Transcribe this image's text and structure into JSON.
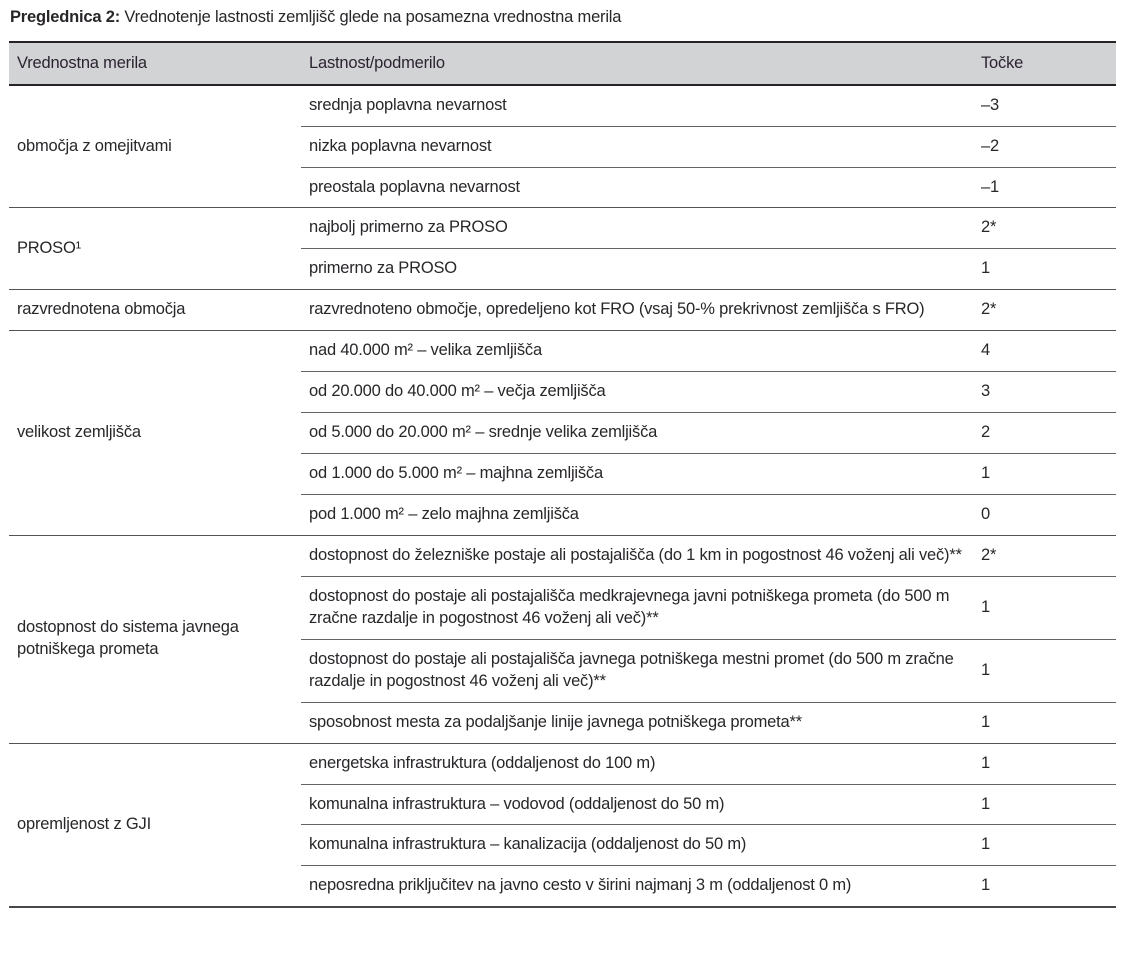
{
  "caption": {
    "label": "Preglednica 2:",
    "text": "Vrednotenje lastnosti zemljišč glede na posamezna vrednostna merila"
  },
  "colors": {
    "header_background": "#d2d3d5",
    "rule_dark": "#262226",
    "rule_gray": "#545358",
    "text": "#29262a",
    "page_background": "#ffffff"
  },
  "table": {
    "columns": [
      "Vrednostna merila",
      "Lastnost/podmerilo",
      "Točke"
    ],
    "groups": [
      {
        "criterion": "območja z omejitvami",
        "rows": [
          {
            "property": "srednja poplavna nevarnost",
            "points": "–3"
          },
          {
            "property": "nizka poplavna nevarnost",
            "points": "–2"
          },
          {
            "property": "preostala poplavna nevarnost",
            "points": "–1"
          }
        ]
      },
      {
        "criterion": "PROSO¹",
        "rows": [
          {
            "property": "najbolj primerno za PROSO",
            "points": "2*"
          },
          {
            "property": "primerno za PROSO",
            "points": "1"
          }
        ]
      },
      {
        "criterion": "razvrednotena območja",
        "rows": [
          {
            "property": "razvrednoteno območje, opredeljeno kot FRO (vsaj 50-% prekrivnost zemljišča s FRO)",
            "points": "2*"
          }
        ]
      },
      {
        "criterion": "velikost zemljišča",
        "rows": [
          {
            "property": "nad 40.000 m² – velika zemljišča",
            "points": "4"
          },
          {
            "property": "od 20.000 do 40.000 m² – večja zemljišča",
            "points": "3"
          },
          {
            "property": "od 5.000 do 20.000 m² – srednje velika zemljišča",
            "points": "2"
          },
          {
            "property": "od 1.000 do 5.000 m² – majhna zemljišča",
            "points": "1"
          },
          {
            "property": "pod 1.000 m² – zelo majhna zemljišča",
            "points": "0"
          }
        ]
      },
      {
        "criterion": "dostopnost do sistema javnega potniškega prometa",
        "rows": [
          {
            "property": "dostopnost do železniške postaje ali postajališča (do 1 km in pogostnost 46 voženj ali več)**",
            "points": "2*"
          },
          {
            "property": "dostopnost do postaje ali postajališča medkrajevnega javni potniškega prometa (do 500 m zračne razdalje in pogostnost 46 voženj ali več)**",
            "points": "1"
          },
          {
            "property": "dostopnost do postaje ali postajališča javnega potniškega mestni promet (do 500 m zračne razdalje in pogostnost 46 voženj ali več)**",
            "points": "1"
          },
          {
            "property": "sposobnost mesta za podaljšanje linije javnega potniškega prometa**",
            "points": "1"
          }
        ]
      },
      {
        "criterion": "opremljenost z GJI",
        "rows": [
          {
            "property": "energetska infrastruktura (oddaljenost do 100 m)",
            "points": "1"
          },
          {
            "property": "komunalna infrastruktura – vodovod (oddaljenost do 50 m)",
            "points": "1"
          },
          {
            "property": "komunalna infrastruktura – kanalizacija (oddaljenost do 50 m)",
            "points": "1"
          },
          {
            "property": "neposredna priključitev na javno cesto v širini najmanj 3 m (oddaljenost 0 m)",
            "points": "1"
          }
        ]
      }
    ]
  }
}
